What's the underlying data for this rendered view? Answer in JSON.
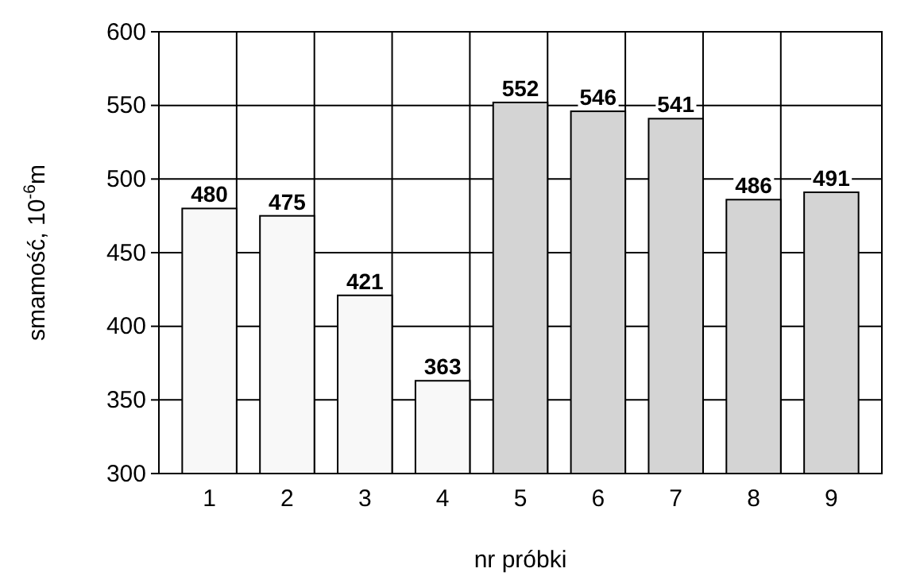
{
  "chart_data": {
    "type": "bar",
    "xlabel": "nr próbki",
    "ylabel": "smamość, 10$^{-6}$m",
    "categories": [
      "1",
      "2",
      "3",
      "4",
      "5",
      "6",
      "7",
      "8",
      "9"
    ],
    "values": [
      480,
      475,
      421,
      363,
      552,
      546,
      541,
      486,
      491
    ],
    "colors": [
      "#f8f8f8",
      "#f8f8f8",
      "#f8f8f8",
      "#f8f8f8",
      "#d4d4d4",
      "#d4d4d4",
      "#d4d4d4",
      "#d4d4d4",
      "#d4d4d4"
    ],
    "ylim": [
      300,
      600
    ],
    "yticks": [
      300,
      350,
      400,
      450,
      500,
      550,
      600
    ],
    "grid": true,
    "data_labels": true
  }
}
